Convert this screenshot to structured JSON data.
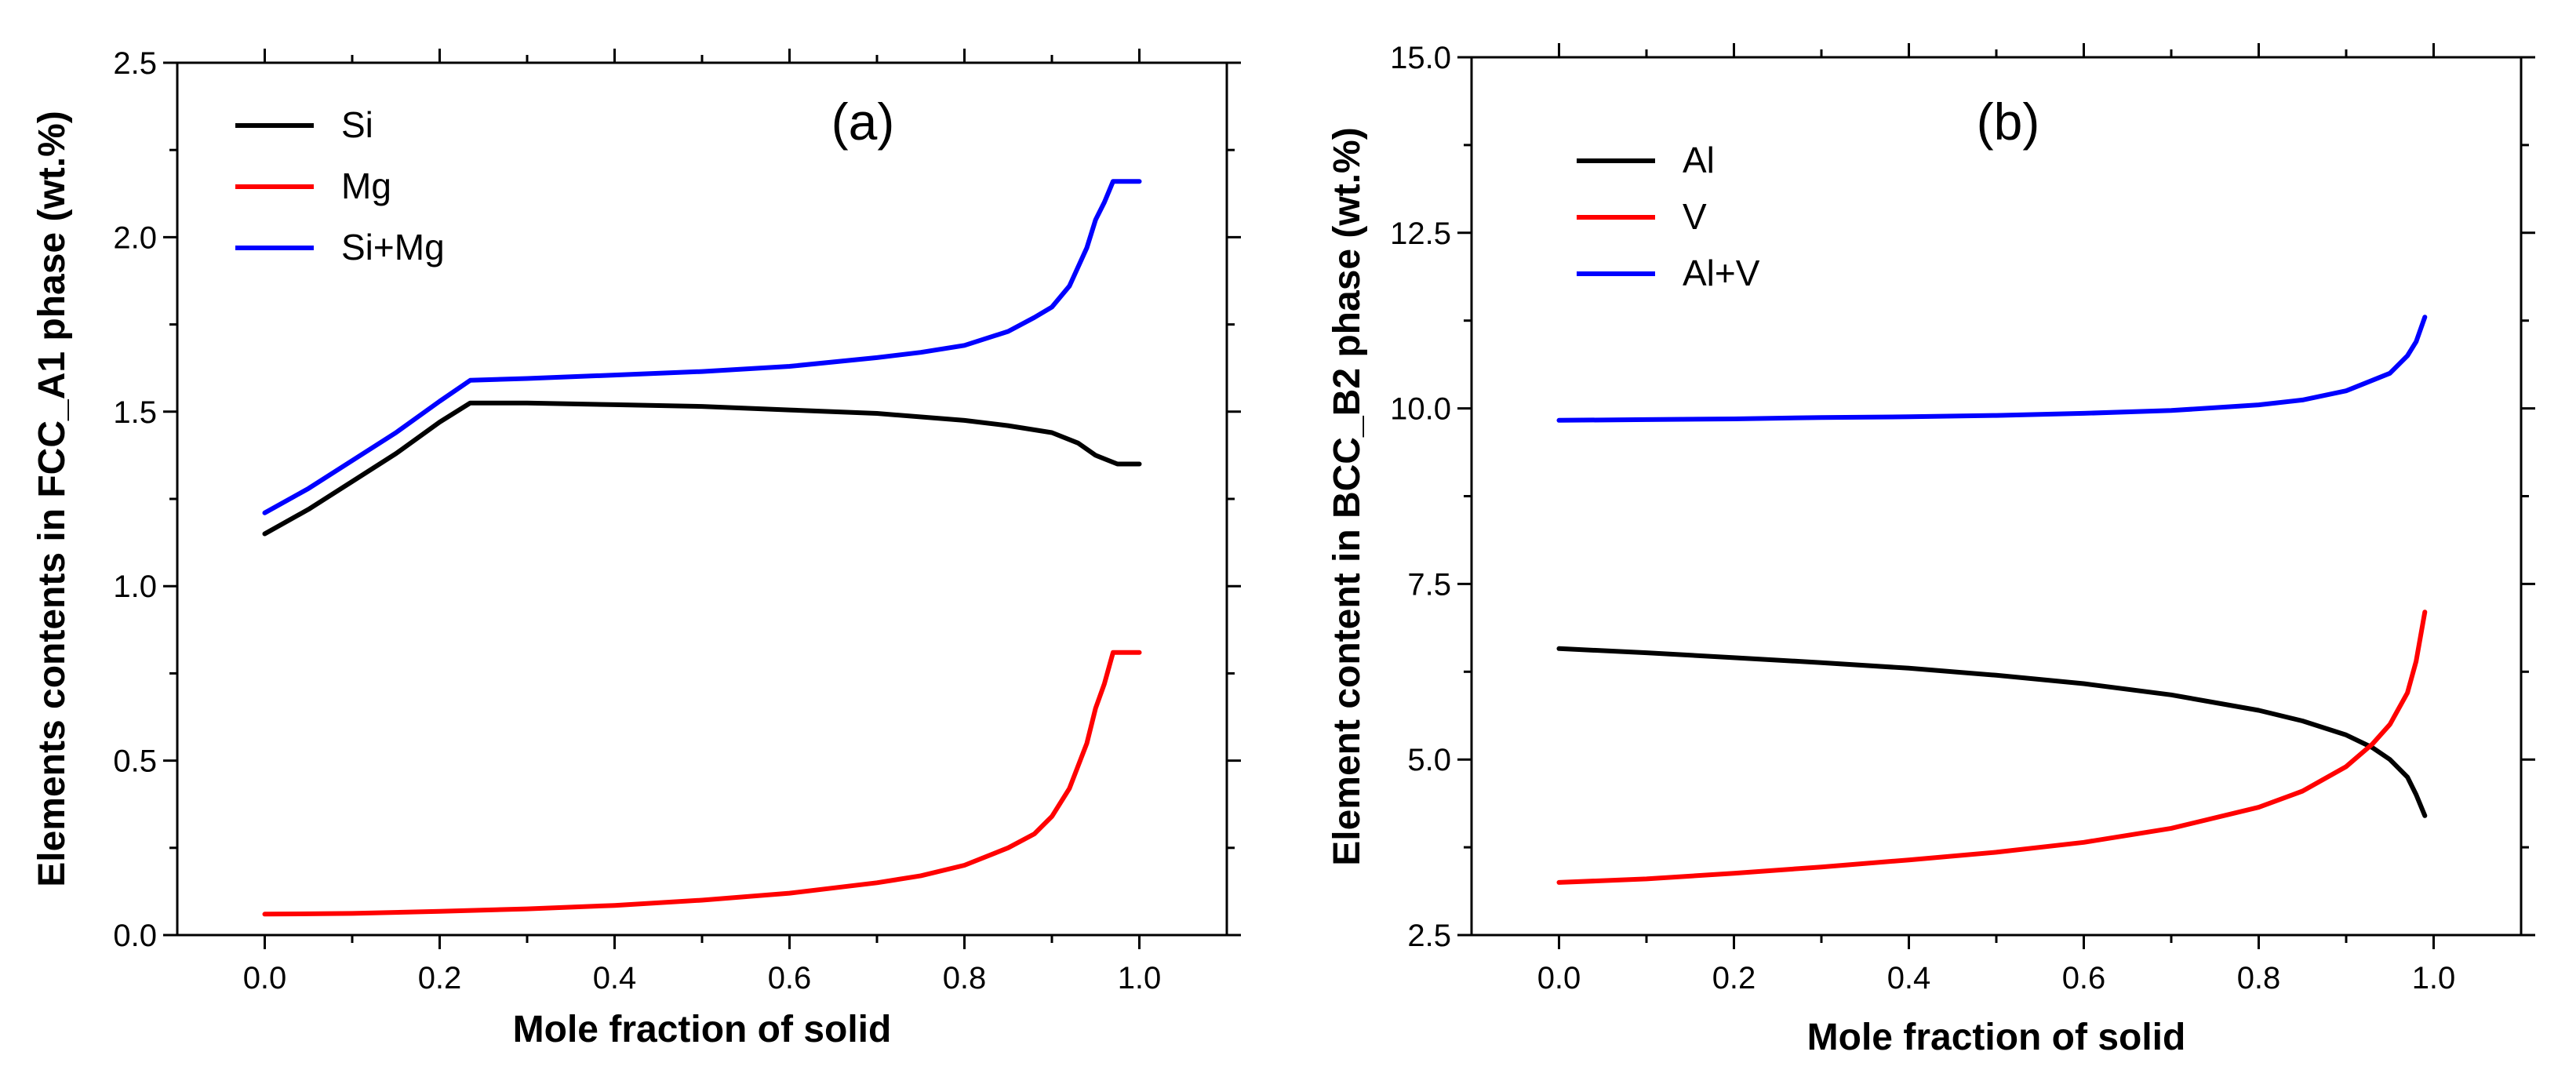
{
  "chart_data": [
    {
      "type": "line",
      "panel_label": "(a)",
      "xlabel": "Mole fraction of solid",
      "ylabel": "Elements contents in FCC_A1 phase (wt.%)",
      "xlim": [
        -0.1,
        1.1
      ],
      "ylim": [
        0.0,
        2.5
      ],
      "xticks": [
        0.0,
        0.2,
        0.4,
        0.6,
        0.8,
        1.0
      ],
      "xtick_labels": [
        "0.0",
        "0.2",
        "0.4",
        "0.6",
        "0.8",
        "1.0"
      ],
      "yticks": [
        0.0,
        0.5,
        1.0,
        1.5,
        2.0,
        2.5
      ],
      "ytick_labels": [
        "0.0",
        "0.5",
        "1.0",
        "1.5",
        "2.0",
        "2.5"
      ],
      "legend_position": "top-left",
      "series": [
        {
          "name": "Si",
          "color": "#000000",
          "x": [
            0.0,
            0.05,
            0.1,
            0.15,
            0.2,
            0.235,
            0.3,
            0.4,
            0.5,
            0.6,
            0.7,
            0.8,
            0.85,
            0.9,
            0.93,
            0.95,
            0.965,
            0.975,
            1.0
          ],
          "y": [
            1.15,
            1.22,
            1.3,
            1.38,
            1.47,
            1.525,
            1.525,
            1.52,
            1.515,
            1.505,
            1.495,
            1.475,
            1.46,
            1.44,
            1.41,
            1.375,
            1.36,
            1.35,
            1.35
          ]
        },
        {
          "name": "Mg",
          "color": "#ff0000",
          "x": [
            0.0,
            0.1,
            0.2,
            0.3,
            0.4,
            0.5,
            0.6,
            0.7,
            0.75,
            0.8,
            0.85,
            0.88,
            0.9,
            0.92,
            0.94,
            0.95,
            0.96,
            0.97,
            1.0
          ],
          "y": [
            0.06,
            0.062,
            0.068,
            0.075,
            0.085,
            0.1,
            0.12,
            0.15,
            0.17,
            0.2,
            0.25,
            0.29,
            0.34,
            0.42,
            0.55,
            0.65,
            0.72,
            0.81,
            0.81
          ]
        },
        {
          "name": "Si+Mg",
          "color": "#0000ff",
          "x": [
            0.0,
            0.05,
            0.1,
            0.15,
            0.2,
            0.235,
            0.3,
            0.4,
            0.5,
            0.6,
            0.7,
            0.75,
            0.8,
            0.85,
            0.88,
            0.9,
            0.92,
            0.94,
            0.95,
            0.96,
            0.97,
            1.0
          ],
          "y": [
            1.21,
            1.28,
            1.36,
            1.44,
            1.53,
            1.59,
            1.595,
            1.605,
            1.615,
            1.63,
            1.655,
            1.67,
            1.69,
            1.73,
            1.77,
            1.8,
            1.86,
            1.97,
            2.05,
            2.1,
            2.16,
            2.16
          ]
        }
      ]
    },
    {
      "type": "line",
      "panel_label": "(b)",
      "xlabel": "Mole fraction of solid",
      "ylabel": "Element content in BCC_B2 phase (wt.%)",
      "xlim": [
        -0.1,
        1.1
      ],
      "ylim": [
        2.5,
        15.0
      ],
      "xticks": [
        0.0,
        0.2,
        0.4,
        0.6,
        0.8,
        1.0
      ],
      "xtick_labels": [
        "0.0",
        "0.2",
        "0.4",
        "0.6",
        "0.8",
        "1.0"
      ],
      "yticks": [
        2.5,
        5.0,
        7.5,
        10.0,
        12.5,
        15.0
      ],
      "ytick_labels": [
        "2.5",
        "5.0",
        "7.5",
        "10.0",
        "12.5",
        "15.0"
      ],
      "legend_position": "top-left",
      "series": [
        {
          "name": "Al",
          "color": "#000000",
          "x": [
            0.0,
            0.1,
            0.2,
            0.3,
            0.4,
            0.5,
            0.6,
            0.7,
            0.8,
            0.85,
            0.9,
            0.93,
            0.95,
            0.97,
            0.98,
            0.99
          ],
          "y": [
            6.58,
            6.52,
            6.45,
            6.38,
            6.3,
            6.2,
            6.08,
            5.92,
            5.7,
            5.55,
            5.35,
            5.17,
            5.0,
            4.75,
            4.5,
            4.2
          ]
        },
        {
          "name": "V",
          "color": "#ff0000",
          "x": [
            0.0,
            0.1,
            0.2,
            0.3,
            0.4,
            0.5,
            0.6,
            0.7,
            0.8,
            0.85,
            0.9,
            0.93,
            0.95,
            0.97,
            0.98,
            0.99
          ],
          "y": [
            3.25,
            3.3,
            3.38,
            3.47,
            3.57,
            3.68,
            3.82,
            4.02,
            4.32,
            4.55,
            4.9,
            5.22,
            5.5,
            5.95,
            6.4,
            7.1
          ]
        },
        {
          "name": "Al+V",
          "color": "#0000ff",
          "x": [
            0.0,
            0.1,
            0.2,
            0.3,
            0.4,
            0.5,
            0.6,
            0.7,
            0.8,
            0.85,
            0.9,
            0.93,
            0.95,
            0.97,
            0.98,
            0.99
          ],
          "y": [
            9.83,
            9.84,
            9.85,
            9.87,
            9.88,
            9.9,
            9.93,
            9.97,
            10.05,
            10.12,
            10.25,
            10.4,
            10.5,
            10.75,
            10.95,
            11.3
          ]
        }
      ]
    }
  ]
}
